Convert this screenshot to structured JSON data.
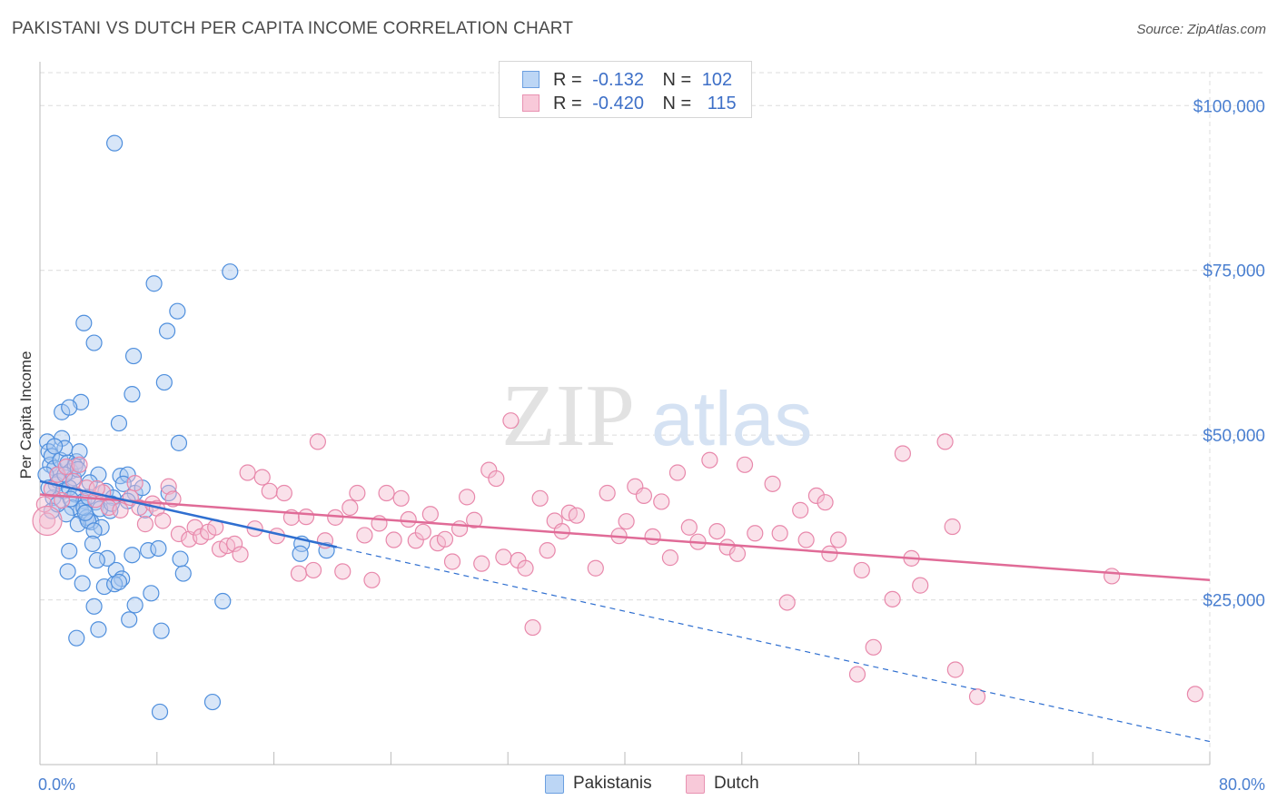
{
  "title": "PAKISTANI VS DUTCH PER CAPITA INCOME CORRELATION CHART",
  "source": "Source: ZipAtlas.com",
  "watermark": {
    "zip": "ZIP",
    "atlas": "atlas"
  },
  "colors": {
    "blue_fill": "#a8c8f0",
    "blue_stroke": "#4f8fdd",
    "blue_line": "#2f6fd0",
    "pink_fill": "#f5bcd0",
    "pink_stroke": "#e888ab",
    "pink_line": "#e06b97",
    "grid": "#dcdcdc",
    "tick_text": "#4a7fd0"
  },
  "legend": {
    "rows": [
      {
        "r_label": "R =",
        "r_value": "-0.132",
        "n_label": "N =",
        "n_value": "102"
      },
      {
        "r_label": "R =",
        "r_value": "-0.420",
        "n_label": "N =",
        "n_value": "115"
      }
    ]
  },
  "chart_data": {
    "type": "scatter",
    "title": "PAKISTANI VS DUTCH PER CAPITA INCOME CORRELATION CHART",
    "xlabel": "",
    "ylabel": "Per Capita Income",
    "xlim": [
      0,
      80
    ],
    "ylim": [
      0,
      105000
    ],
    "x_tick_labels": [
      "0.0%",
      "80.0%"
    ],
    "y_ticks": [
      25000,
      50000,
      75000,
      100000
    ],
    "y_tick_labels": [
      "$25,000",
      "$50,000",
      "$75,000",
      "$100,000"
    ],
    "grid": true,
    "legend_position": "top-center",
    "series": [
      {
        "name": "Pakistanis",
        "r": -0.132,
        "n": 102,
        "trend": {
          "x": [
            0,
            20.3
          ],
          "y": [
            43000,
            33000
          ]
        },
        "trend_extension": {
          "x": [
            20.3,
            80
          ],
          "y": [
            33000,
            3500
          ]
        },
        "points": [
          [
            0.5,
            49000
          ],
          [
            0.6,
            47500
          ],
          [
            0.7,
            45500
          ],
          [
            0.8,
            46800
          ],
          [
            1.0,
            45000
          ],
          [
            1.2,
            44000
          ],
          [
            1.4,
            46200
          ],
          [
            1.5,
            49500
          ],
          [
            1.7,
            48000
          ],
          [
            1.9,
            45800
          ],
          [
            2.1,
            44500
          ],
          [
            2.3,
            43500
          ],
          [
            2.5,
            46000
          ],
          [
            2.7,
            47500
          ],
          [
            0.4,
            44000
          ],
          [
            1.1,
            42500
          ],
          [
            1.3,
            43000
          ],
          [
            1.6,
            41500
          ],
          [
            2.0,
            42000
          ],
          [
            2.4,
            41000
          ],
          [
            3.0,
            40000
          ],
          [
            2.8,
            38500
          ],
          [
            2.2,
            39000
          ],
          [
            1.8,
            38000
          ],
          [
            3.2,
            37500
          ],
          [
            3.5,
            36800
          ],
          [
            2.6,
            36500
          ],
          [
            0.9,
            40500
          ],
          [
            1.5,
            53500
          ],
          [
            2.8,
            55000
          ],
          [
            2.0,
            54200
          ],
          [
            4.5,
            41500
          ],
          [
            5.0,
            40500
          ],
          [
            4.8,
            38500
          ],
          [
            3.8,
            39800
          ],
          [
            4.0,
            44000
          ],
          [
            3.4,
            42800
          ],
          [
            5.5,
            43800
          ],
          [
            6.0,
            44000
          ],
          [
            6.5,
            41200
          ],
          [
            7.0,
            42000
          ],
          [
            3.3,
            37000
          ],
          [
            4.2,
            36000
          ],
          [
            3.7,
            35500
          ],
          [
            5.2,
            29500
          ],
          [
            5.6,
            28200
          ],
          [
            4.6,
            31300
          ],
          [
            3.9,
            31000
          ],
          [
            6.3,
            31800
          ],
          [
            7.4,
            32500
          ],
          [
            8.1,
            32800
          ],
          [
            9.6,
            31200
          ],
          [
            9.8,
            29000
          ],
          [
            2.0,
            32400
          ],
          [
            3.6,
            33500
          ],
          [
            1.9,
            29300
          ],
          [
            2.9,
            27500
          ],
          [
            4.4,
            27000
          ],
          [
            5.1,
            27400
          ],
          [
            5.4,
            27700
          ],
          [
            3.7,
            24000
          ],
          [
            6.5,
            24200
          ],
          [
            7.6,
            26000
          ],
          [
            6.1,
            22000
          ],
          [
            4.0,
            20500
          ],
          [
            8.3,
            20300
          ],
          [
            12.5,
            24800
          ],
          [
            2.5,
            19200
          ],
          [
            8.2,
            8000
          ],
          [
            11.8,
            9500
          ],
          [
            13.0,
            74800
          ],
          [
            7.8,
            73000
          ],
          [
            9.4,
            68800
          ],
          [
            3.0,
            67000
          ],
          [
            3.7,
            64000
          ],
          [
            8.7,
            65800
          ],
          [
            6.4,
            62000
          ],
          [
            8.5,
            58000
          ],
          [
            6.3,
            56200
          ],
          [
            5.4,
            51800
          ],
          [
            9.5,
            48800
          ],
          [
            8.8,
            41200
          ],
          [
            6.0,
            40000
          ],
          [
            3.0,
            39000
          ],
          [
            17.9,
            33500
          ],
          [
            17.8,
            32000
          ],
          [
            19.6,
            32500
          ],
          [
            5.1,
            94300
          ],
          [
            0.8,
            38500
          ],
          [
            1.2,
            39500
          ],
          [
            2.4,
            45300
          ],
          [
            1.7,
            44000
          ],
          [
            3.1,
            38200
          ],
          [
            4.1,
            38800
          ],
          [
            3.3,
            40600
          ],
          [
            2.6,
            44800
          ],
          [
            0.6,
            42000
          ],
          [
            1.0,
            48300
          ],
          [
            5.7,
            42600
          ],
          [
            4.9,
            39600
          ],
          [
            2.1,
            40300
          ],
          [
            7.2,
            38600
          ]
        ]
      },
      {
        "name": "Dutch",
        "r": -0.42,
        "n": 115,
        "trend": {
          "x": [
            0,
            80
          ],
          "y": [
            41000,
            28000
          ]
        },
        "points": [
          [
            0.3,
            39500
          ],
          [
            0.8,
            41800
          ],
          [
            1.2,
            44000
          ],
          [
            1.8,
            45200
          ],
          [
            2.3,
            43000
          ],
          [
            2.7,
            45500
          ],
          [
            3.2,
            42000
          ],
          [
            3.8,
            40200
          ],
          [
            4.3,
            41300
          ],
          [
            4.7,
            39000
          ],
          [
            5.5,
            38600
          ],
          [
            6.2,
            40500
          ],
          [
            6.8,
            39000
          ],
          [
            7.2,
            36500
          ],
          [
            7.7,
            39600
          ],
          [
            8.0,
            38900
          ],
          [
            8.4,
            37000
          ],
          [
            8.8,
            42200
          ],
          [
            9.5,
            35000
          ],
          [
            10.2,
            34200
          ],
          [
            10.6,
            36000
          ],
          [
            11.0,
            34600
          ],
          [
            11.5,
            35300
          ],
          [
            12.0,
            36000
          ],
          [
            12.3,
            32700
          ],
          [
            12.8,
            33200
          ],
          [
            13.3,
            33500
          ],
          [
            13.7,
            31900
          ],
          [
            14.2,
            44300
          ],
          [
            14.7,
            35800
          ],
          [
            15.2,
            43600
          ],
          [
            15.7,
            41500
          ],
          [
            16.2,
            34700
          ],
          [
            16.7,
            41200
          ],
          [
            17.2,
            37500
          ],
          [
            17.7,
            29000
          ],
          [
            18.2,
            37600
          ],
          [
            18.7,
            29500
          ],
          [
            19.0,
            49000
          ],
          [
            19.5,
            34000
          ],
          [
            20.2,
            37500
          ],
          [
            20.7,
            29300
          ],
          [
            21.2,
            39000
          ],
          [
            21.7,
            41200
          ],
          [
            22.2,
            34800
          ],
          [
            22.7,
            28000
          ],
          [
            23.2,
            36600
          ],
          [
            23.7,
            41200
          ],
          [
            24.2,
            34100
          ],
          [
            24.7,
            40400
          ],
          [
            25.2,
            37200
          ],
          [
            25.7,
            34000
          ],
          [
            26.2,
            35300
          ],
          [
            26.7,
            38000
          ],
          [
            27.2,
            33600
          ],
          [
            27.7,
            34200
          ],
          [
            28.2,
            30800
          ],
          [
            28.7,
            35800
          ],
          [
            29.2,
            40600
          ],
          [
            29.7,
            37100
          ],
          [
            30.2,
            30500
          ],
          [
            30.7,
            44700
          ],
          [
            31.2,
            43400
          ],
          [
            31.7,
            31500
          ],
          [
            32.2,
            52200
          ],
          [
            32.7,
            31000
          ],
          [
            33.2,
            29800
          ],
          [
            33.7,
            20800
          ],
          [
            34.2,
            40400
          ],
          [
            34.7,
            32500
          ],
          [
            35.2,
            37000
          ],
          [
            35.7,
            35400
          ],
          [
            36.2,
            38200
          ],
          [
            36.7,
            37800
          ],
          [
            38.0,
            29800
          ],
          [
            38.8,
            41200
          ],
          [
            39.6,
            34700
          ],
          [
            40.1,
            36900
          ],
          [
            40.7,
            42200
          ],
          [
            41.3,
            40800
          ],
          [
            41.9,
            34600
          ],
          [
            42.5,
            39900
          ],
          [
            43.1,
            31400
          ],
          [
            43.6,
            44300
          ],
          [
            44.4,
            36000
          ],
          [
            45.0,
            33800
          ],
          [
            45.8,
            46200
          ],
          [
            46.3,
            35400
          ],
          [
            47.0,
            33000
          ],
          [
            47.7,
            32000
          ],
          [
            48.2,
            45500
          ],
          [
            48.9,
            35100
          ],
          [
            50.1,
            42600
          ],
          [
            50.6,
            35100
          ],
          [
            51.1,
            24600
          ],
          [
            52.0,
            38600
          ],
          [
            52.4,
            34100
          ],
          [
            53.1,
            40800
          ],
          [
            53.7,
            39800
          ],
          [
            54.0,
            32000
          ],
          [
            54.6,
            34100
          ],
          [
            55.9,
            13700
          ],
          [
            56.2,
            29500
          ],
          [
            57.0,
            17800
          ],
          [
            58.3,
            25100
          ],
          [
            59.0,
            47200
          ],
          [
            59.6,
            31300
          ],
          [
            60.2,
            27200
          ],
          [
            61.9,
            49000
          ],
          [
            62.4,
            36100
          ],
          [
            62.6,
            14400
          ],
          [
            64.1,
            10300
          ],
          [
            73.3,
            28600
          ],
          [
            79.0,
            10700
          ],
          [
            0.5,
            37000
          ],
          [
            1.5,
            40100
          ],
          [
            3.9,
            41900
          ],
          [
            6.5,
            42700
          ],
          [
            9.1,
            40300
          ]
        ]
      }
    ]
  },
  "bottom_legend": {
    "items": [
      "Pakistanis",
      "Dutch"
    ]
  }
}
